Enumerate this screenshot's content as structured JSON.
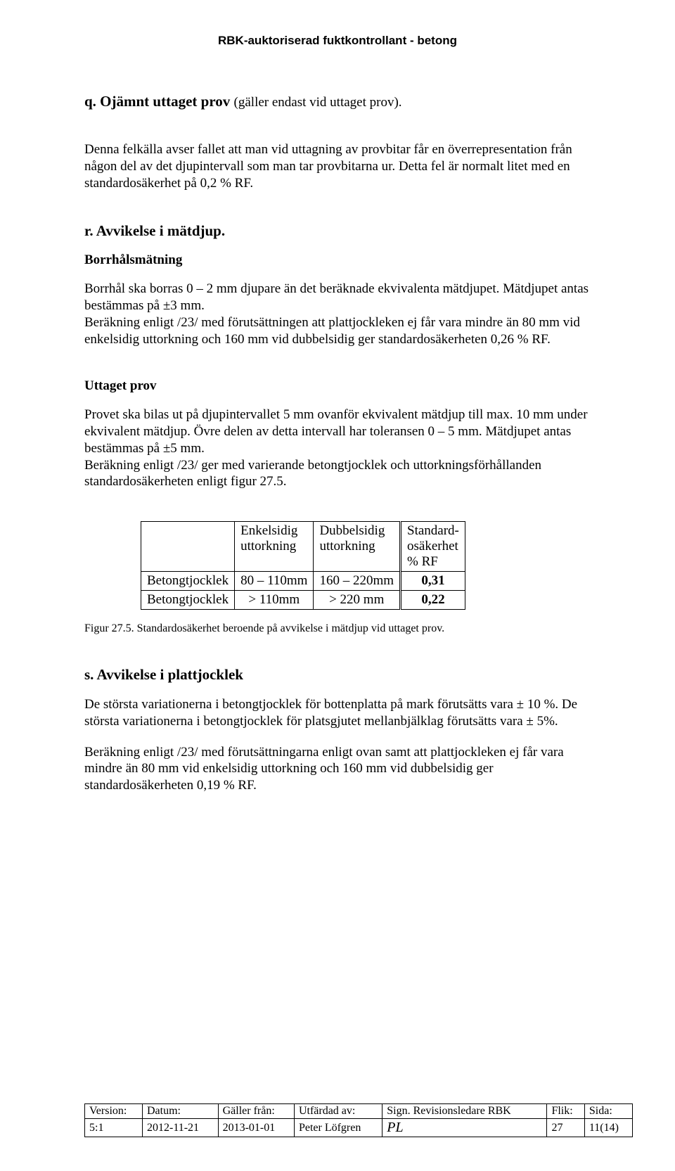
{
  "headerTitle": "RBK-auktoriserad fuktkontrollant - betong",
  "q": {
    "heading": "q. Ojämnt uttaget prov",
    "note": "(gäller endast vid uttaget prov).",
    "p1": "Denna felkälla avser fallet att man vid uttagning av provbitar får en överrepresentation från någon del av det djupintervall som man tar provbitarna ur. Detta fel är normalt litet med en standardosäkerhet på 0,2 % RF."
  },
  "r": {
    "heading": "r. Avvikelse i mätdjup.",
    "sub1": "Borrhålsmätning",
    "p1": "Borrhål ska borras 0 – 2 mm djupare än det beräknade ekvivalenta mätdjupet. Mätdjupet antas bestämmas på ±3 mm.",
    "p2": "Beräkning enligt /23/ med förutsättningen att plattjockleken ej får vara mindre än 80 mm vid enkelsidig uttorkning och 160 mm vid dubbelsidig ger standardosäkerheten 0,26 % RF.",
    "sub2": "Uttaget prov",
    "p3": "Provet ska bilas ut på djupintervallet 5 mm ovanför ekvivalent mätdjup till max. 10 mm under ekvivalent mätdjup. Övre delen av detta intervall har toleransen 0 – 5 mm. Mätdjupet antas bestämmas på ±5 mm.",
    "p4": "Beräkning enligt /23/ ger med varierande betongtjocklek och uttorkningsförhållanden standardosäkerheten enligt figur 27.5.",
    "table": {
      "headers": [
        "",
        "Enkelsidig\nuttorkning",
        "Dubbelsidig\nuttorkning",
        "Standard-\nosäkerhet\n% RF"
      ],
      "rows": [
        [
          "Betongtjocklek",
          "80 – 110mm",
          "160 – 220mm",
          "0,31"
        ],
        [
          "Betongtjocklek",
          "> 110mm",
          "> 220 mm",
          "0,22"
        ]
      ]
    },
    "caption": "Figur 27.5. Standardosäkerhet beroende på avvikelse i mätdjup vid uttaget prov."
  },
  "s": {
    "heading": "s. Avvikelse i plattjocklek",
    "p1": "De största variationerna i betongtjocklek för bottenplatta på mark förutsätts vara ± 10 %. De största variationerna i betongtjocklek för platsgjutet mellanbjälklag förutsätts vara ±  5%.",
    "p2": "Beräkning enligt /23/ med förutsättningarna enligt ovan samt att plattjockleken ej får vara mindre än 80 mm vid enkelsidig uttorkning och 160 mm vid dubbelsidig ger standardosäkerheten  0,19 % RF."
  },
  "footer": {
    "headers": [
      "Version:",
      "Datum:",
      "Gäller från:",
      "Utfärdad av:",
      "Sign. Revisionsledare RBK",
      "Flik:",
      "Sida:"
    ],
    "values": [
      "5:1",
      "2012-11-21",
      "2013-01-01",
      "Peter Löfgren",
      "",
      "27",
      "11(14)"
    ]
  }
}
